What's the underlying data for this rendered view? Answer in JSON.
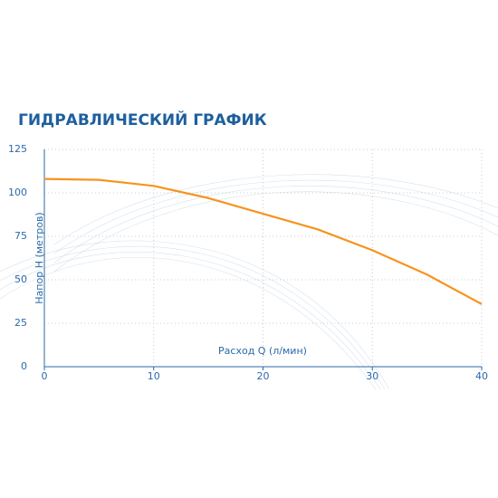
{
  "chart_data": {
    "type": "line",
    "title": "ГИДРАВЛИЧЕСКИЙ ГРАФИК",
    "x_label": "Расход Q (л/мин)",
    "y_label": "Напор Н (метров)",
    "x": [
      0,
      5,
      10,
      15,
      20,
      25,
      30,
      35,
      40
    ],
    "values": [
      108,
      107.5,
      104,
      97,
      88,
      79,
      67,
      53,
      36
    ],
    "color": "#f7931e",
    "xlim": [
      0,
      40
    ],
    "xticks": [
      0,
      10,
      20,
      30,
      40
    ],
    "ylim": [
      0,
      125
    ],
    "yticks": [
      0,
      25,
      50,
      75,
      100,
      125
    ],
    "grid": true
  }
}
